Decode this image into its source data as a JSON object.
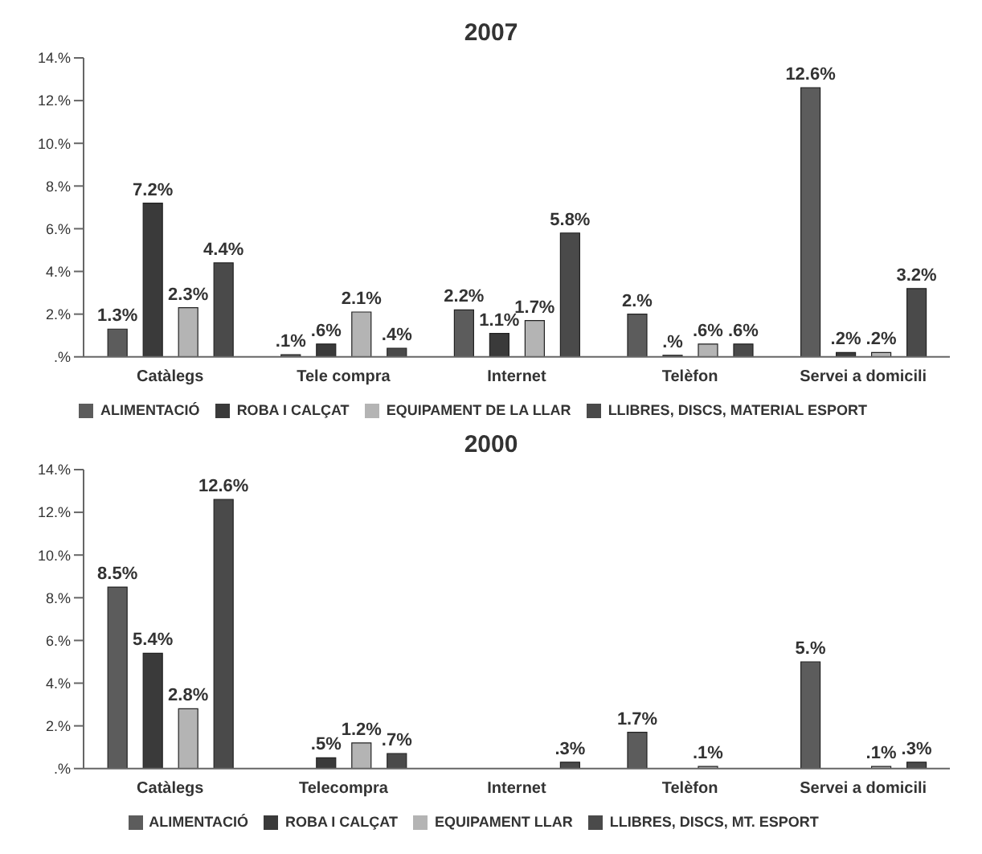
{
  "chart_data": [
    {
      "type": "bar",
      "title": "2007",
      "categories": [
        "Catàlegs",
        "Tele compra",
        "Internet",
        "Telèfon",
        "Servei a domicili"
      ],
      "series": [
        {
          "name": "ALIMENTACIÓ",
          "color": "#5c5c5c",
          "values": [
            1.3,
            0.1,
            2.2,
            2.0,
            12.6
          ],
          "value_labels": [
            "1.3%",
            ".1%",
            "2.2%",
            "2.%",
            "12.6%"
          ]
        },
        {
          "name": "ROBA I CALÇAT",
          "color": "#3a3a3a",
          "values": [
            7.2,
            0.6,
            1.1,
            0,
            0.2
          ],
          "value_labels": [
            "7.2%",
            ".6%",
            "1.1%",
            ".%",
            ".2%"
          ]
        },
        {
          "name": "EQUIPAMENT DE LA LLAR",
          "color": "#b4b4b4",
          "values": [
            2.3,
            2.1,
            1.7,
            0.6,
            0.2
          ],
          "value_labels": [
            "2.3%",
            "2.1%",
            "1.7%",
            ".6%",
            ".2%"
          ]
        },
        {
          "name": "LLIBRES, DISCS, MATERIAL ESPORT",
          "color": "#4a4a4a",
          "values": [
            4.4,
            0.4,
            5.8,
            0.6,
            3.2
          ],
          "value_labels": [
            "4.4%",
            ".4%",
            "5.8%",
            ".6%",
            "3.2%"
          ]
        }
      ],
      "ylim": [
        0,
        14
      ],
      "yticks": [
        {
          "value": 0,
          "label": ".%"
        },
        {
          "value": 2,
          "label": "2.%"
        },
        {
          "value": 4,
          "label": "4.%"
        },
        {
          "value": 6,
          "label": "6.%"
        },
        {
          "value": 8,
          "label": "8.%"
        },
        {
          "value": 10,
          "label": "10.%"
        },
        {
          "value": 12,
          "label": "12.%"
        },
        {
          "value": 14,
          "label": "14.%"
        }
      ],
      "grid": false,
      "legend": "bottom"
    },
    {
      "type": "bar",
      "title": "2000",
      "categories": [
        "Catàlegs",
        "Telecompra",
        "Internet",
        "Telèfon",
        "Servei a domicili"
      ],
      "series": [
        {
          "name": "ALIMENTACIÓ",
          "color": "#5c5c5c",
          "values": [
            8.5,
            null,
            null,
            1.7,
            5.0
          ],
          "value_labels": [
            "8.5%",
            null,
            null,
            "1.7%",
            "5.%"
          ]
        },
        {
          "name": "ROBA I CALÇAT",
          "color": "#3a3a3a",
          "values": [
            5.4,
            0.5,
            null,
            null,
            null
          ],
          "value_labels": [
            "5.4%",
            ".5%",
            null,
            null,
            null
          ]
        },
        {
          "name": "EQUIPAMENT LLAR",
          "color": "#b4b4b4",
          "values": [
            2.8,
            1.2,
            null,
            0.1,
            0.1
          ],
          "value_labels": [
            "2.8%",
            "1.2%",
            null,
            ".1%",
            ".1%"
          ]
        },
        {
          "name": "LLIBRES, DISCS, MT. ESPORT",
          "color": "#4a4a4a",
          "values": [
            12.6,
            0.7,
            0.3,
            null,
            0.3
          ],
          "value_labels": [
            "12.6%",
            ".7%",
            ".3%",
            null,
            ".3%"
          ]
        }
      ],
      "ylim": [
        0,
        14
      ],
      "yticks": [
        {
          "value": 0,
          "label": ".%"
        },
        {
          "value": 2,
          "label": "2.%"
        },
        {
          "value": 4,
          "label": "4.%"
        },
        {
          "value": 6,
          "label": "6.%"
        },
        {
          "value": 8,
          "label": "8.%"
        },
        {
          "value": 10,
          "label": "10.%"
        },
        {
          "value": 12,
          "label": "12.%"
        },
        {
          "value": 14,
          "label": "14.%"
        }
      ],
      "grid": false,
      "legend": "bottom"
    }
  ]
}
